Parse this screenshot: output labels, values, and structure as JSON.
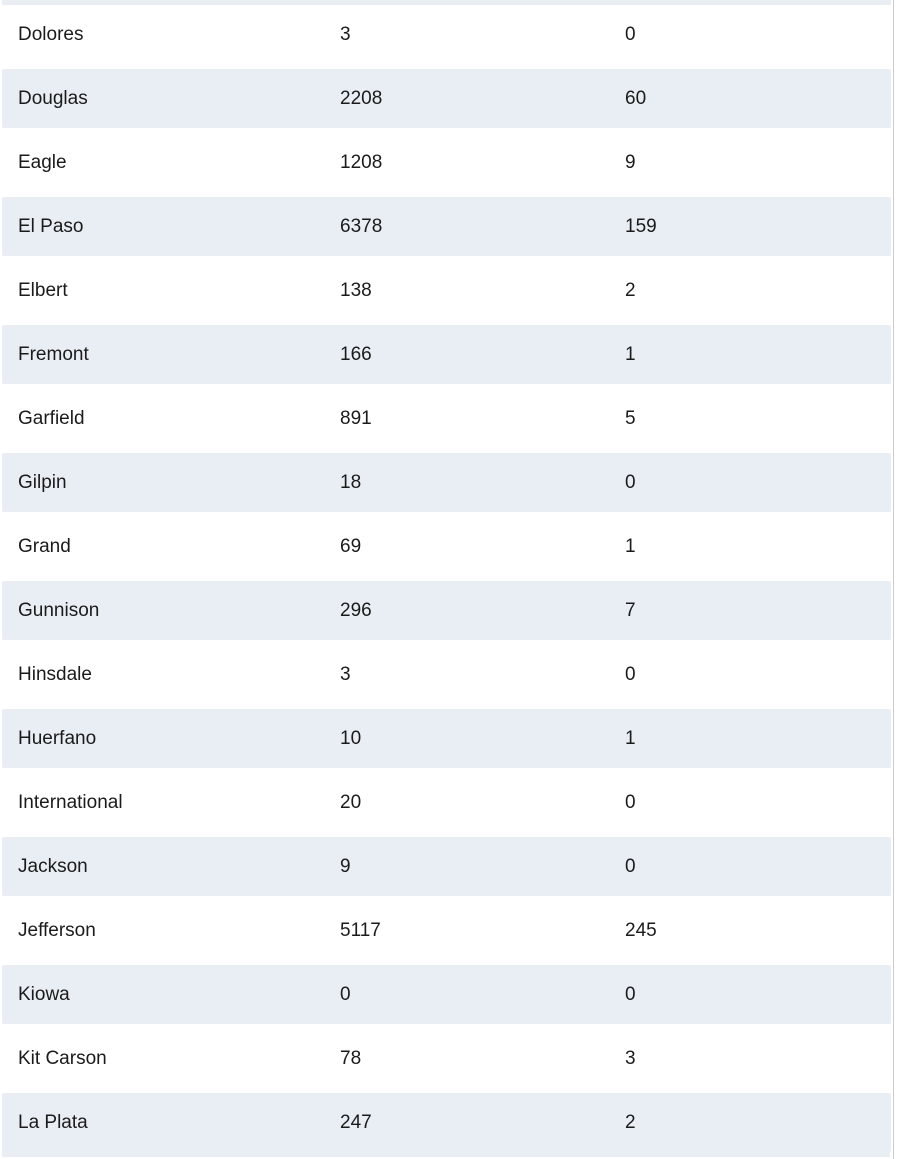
{
  "colors": {
    "row_shade": "#e8eef4",
    "right_border": "#cccccc",
    "text": "#1b1b1b",
    "background": "#ffffff"
  },
  "table": {
    "rows": [
      {
        "county": "Dolores",
        "value1": "3",
        "value2": "0"
      },
      {
        "county": "Douglas",
        "value1": "2208",
        "value2": "60"
      },
      {
        "county": "Eagle",
        "value1": "1208",
        "value2": "9"
      },
      {
        "county": "El Paso",
        "value1": "6378",
        "value2": "159"
      },
      {
        "county": "Elbert",
        "value1": "138",
        "value2": "2"
      },
      {
        "county": "Fremont",
        "value1": "166",
        "value2": "1"
      },
      {
        "county": "Garfield",
        "value1": "891",
        "value2": "5"
      },
      {
        "county": "Gilpin",
        "value1": "18",
        "value2": "0"
      },
      {
        "county": "Grand",
        "value1": "69",
        "value2": "1"
      },
      {
        "county": "Gunnison",
        "value1": "296",
        "value2": "7"
      },
      {
        "county": "Hinsdale",
        "value1": "3",
        "value2": "0"
      },
      {
        "county": "Huerfano",
        "value1": "10",
        "value2": "1"
      },
      {
        "county": "International",
        "value1": "20",
        "value2": "0"
      },
      {
        "county": "Jackson",
        "value1": "9",
        "value2": "0"
      },
      {
        "county": "Jefferson",
        "value1": "5117",
        "value2": "245"
      },
      {
        "county": "Kiowa",
        "value1": "0",
        "value2": "0"
      },
      {
        "county": "Kit Carson",
        "value1": "78",
        "value2": "3"
      },
      {
        "county": "La Plata",
        "value1": "247",
        "value2": "2"
      }
    ]
  }
}
